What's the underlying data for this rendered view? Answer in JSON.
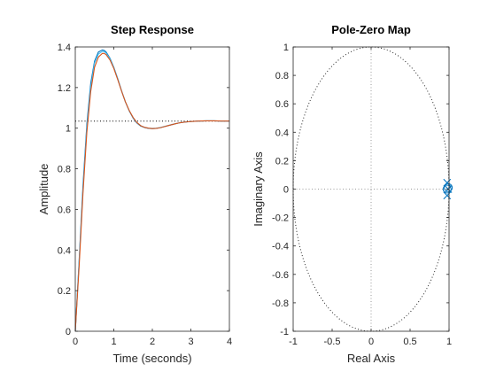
{
  "chart_data": [
    {
      "type": "line",
      "title": "Step Response",
      "xlabel": "Time (seconds)",
      "ylabel": "Amplitude",
      "xlim": [
        0,
        4
      ],
      "ylim": [
        0,
        1.4
      ],
      "xticks": [
        {
          "value": 0,
          "label": "0"
        },
        {
          "value": 1,
          "label": "1"
        },
        {
          "value": 2,
          "label": "2"
        },
        {
          "value": 3,
          "label": "3"
        },
        {
          "value": 4,
          "label": "4"
        }
      ],
      "yticks": [
        {
          "value": 0,
          "label": "0"
        },
        {
          "value": 0.2,
          "label": "0.2"
        },
        {
          "value": 0.4,
          "label": "0.4"
        },
        {
          "value": 0.6,
          "label": "0.6"
        },
        {
          "value": 0.8,
          "label": "0.8"
        },
        {
          "value": 1,
          "label": "1"
        },
        {
          "value": 1.2,
          "label": "1.2"
        },
        {
          "value": 1.4,
          "label": "1.4"
        }
      ],
      "grid": false,
      "reference_line": {
        "y": 1.035,
        "style": "dotted",
        "color": "#000000"
      },
      "series": [
        {
          "color": "#0072BD",
          "x": [
            0,
            0.1,
            0.2,
            0.3,
            0.4,
            0.5,
            0.6,
            0.7,
            0.75,
            0.8,
            0.9,
            1.0,
            1.1,
            1.2,
            1.3,
            1.4,
            1.5,
            1.6,
            1.7,
            1.8,
            1.9,
            2.0,
            2.1,
            2.2,
            2.3,
            2.4,
            2.5,
            2.6,
            2.7,
            2.8,
            2.9,
            3.0,
            3.2,
            3.4,
            3.6,
            3.8,
            4.0
          ],
          "y": [
            0,
            0.35,
            0.72,
            1.02,
            1.22,
            1.33,
            1.375,
            1.385,
            1.383,
            1.375,
            1.345,
            1.3,
            1.245,
            1.185,
            1.13,
            1.085,
            1.05,
            1.025,
            1.01,
            1.003,
            0.999,
            0.998,
            0.999,
            1.002,
            1.007,
            1.012,
            1.017,
            1.022,
            1.026,
            1.029,
            1.031,
            1.033,
            1.035,
            1.036,
            1.036,
            1.035,
            1.035
          ]
        },
        {
          "color": "#4DBEEE",
          "x": [
            0,
            0.1,
            0.2,
            0.3,
            0.4,
            0.5,
            0.6,
            0.7,
            0.75,
            0.8,
            0.9,
            1.0,
            1.1,
            1.2,
            1.3,
            1.4,
            1.5,
            1.6,
            1.7,
            1.8,
            1.9,
            2.0,
            2.1,
            2.2,
            2.3,
            2.4,
            2.5,
            2.6,
            2.7,
            2.8,
            2.9,
            3.0,
            3.2,
            3.4,
            3.6,
            3.8,
            4.0
          ],
          "y": [
            0,
            0.34,
            0.7,
            1.0,
            1.2,
            1.32,
            1.365,
            1.378,
            1.377,
            1.37,
            1.342,
            1.298,
            1.243,
            1.184,
            1.13,
            1.086,
            1.052,
            1.027,
            1.012,
            1.004,
            1.0,
            0.999,
            1.0,
            1.003,
            1.008,
            1.013,
            1.018,
            1.022,
            1.026,
            1.029,
            1.031,
            1.033,
            1.035,
            1.036,
            1.036,
            1.035,
            1.035
          ]
        },
        {
          "color": "#D95319",
          "x": [
            0,
            0.1,
            0.2,
            0.3,
            0.4,
            0.5,
            0.6,
            0.7,
            0.75,
            0.8,
            0.9,
            1.0,
            1.1,
            1.2,
            1.3,
            1.4,
            1.5,
            1.6,
            1.7,
            1.8,
            1.9,
            2.0,
            2.1,
            2.2,
            2.3,
            2.4,
            2.5,
            2.6,
            2.7,
            2.8,
            2.9,
            3.0,
            3.2,
            3.4,
            3.6,
            3.8,
            4.0
          ],
          "y": [
            0,
            0.32,
            0.68,
            0.98,
            1.18,
            1.3,
            1.35,
            1.368,
            1.368,
            1.362,
            1.336,
            1.294,
            1.24,
            1.183,
            1.13,
            1.087,
            1.053,
            1.028,
            1.012,
            1.004,
            1.0,
            0.998,
            0.999,
            1.002,
            1.007,
            1.012,
            1.017,
            1.022,
            1.026,
            1.029,
            1.031,
            1.033,
            1.035,
            1.036,
            1.036,
            1.035,
            1.035
          ]
        }
      ]
    },
    {
      "type": "scatter",
      "title": "Pole-Zero Map",
      "xlabel": "Real Axis",
      "ylabel": "Imaginary Axis",
      "xlim": [
        -1,
        1
      ],
      "ylim": [
        -1,
        1
      ],
      "xticks": [
        {
          "value": -1,
          "label": "-1"
        },
        {
          "value": -0.5,
          "label": "-0.5"
        },
        {
          "value": 0,
          "label": "0"
        },
        {
          "value": 0.5,
          "label": "0.5"
        },
        {
          "value": 1,
          "label": "1"
        }
      ],
      "yticks": [
        {
          "value": -1,
          "label": "-1"
        },
        {
          "value": -0.8,
          "label": "-0.8"
        },
        {
          "value": -0.6,
          "label": "-0.6"
        },
        {
          "value": -0.4,
          "label": "-0.4"
        },
        {
          "value": -0.2,
          "label": "-0.2"
        },
        {
          "value": 0,
          "label": "0"
        },
        {
          "value": 0.2,
          "label": "0.2"
        },
        {
          "value": 0.4,
          "label": "0.4"
        },
        {
          "value": 0.6,
          "label": "0.6"
        },
        {
          "value": 0.8,
          "label": "0.8"
        },
        {
          "value": 1,
          "label": "1"
        }
      ],
      "grid": false,
      "unit_circle": true,
      "marker_color": "#0072BD",
      "poles": [
        {
          "re": 0.975,
          "im": 0.045
        },
        {
          "re": 0.975,
          "im": -0.045
        },
        {
          "re": 0.99,
          "im": 0.0
        }
      ],
      "zeros": [
        {
          "re": 0.975,
          "im": 0.0
        },
        {
          "re": 0.99,
          "im": 0.01
        }
      ]
    }
  ]
}
